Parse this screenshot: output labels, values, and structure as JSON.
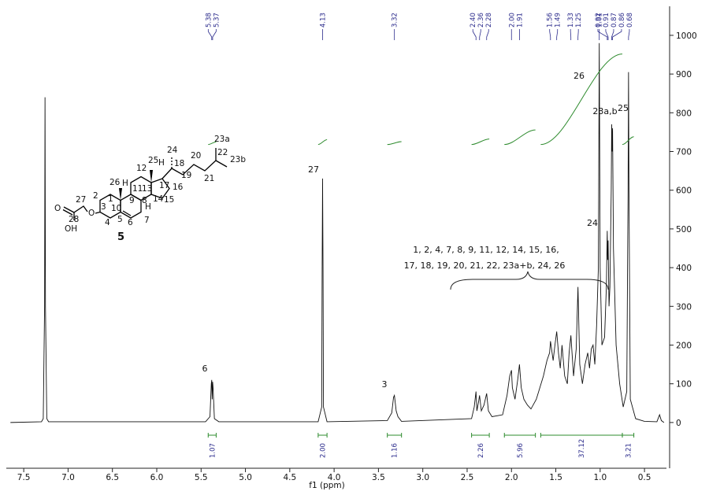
{
  "chart_data": {
    "type": "line",
    "xlabel": "f1 (ppm)",
    "xlim": [
      7.67,
      0.27
    ],
    "ylim": [
      -110,
      1075
    ],
    "xticks": [
      7.5,
      {
        "value": 7,
        "label": "7.0"
      },
      6.5,
      {
        "value": 6,
        "label": "6.0"
      },
      5.5,
      {
        "value": 5,
        "label": "5.0"
      },
      4.5,
      {
        "value": 4,
        "label": "4.0"
      },
      3.5,
      {
        "value": 3,
        "label": "3.0"
      },
      2.5,
      {
        "value": 2,
        "label": "2.0"
      },
      1.5,
      {
        "value": 1,
        "label": "1.0"
      },
      0.5
    ],
    "yticks": [
      0,
      100,
      200,
      300,
      400,
      500,
      600,
      700,
      800,
      900,
      1000
    ],
    "color": "#111111",
    "x": [
      7.65,
      7.3,
      7.28,
      7.265,
      7.26,
      7.255,
      7.24,
      7.22,
      5.45,
      5.4,
      5.385,
      5.38,
      5.375,
      5.37,
      5.365,
      5.35,
      5.3,
      4.18,
      4.14,
      4.135,
      4.13,
      4.125,
      4.12,
      4.08,
      3.4,
      3.35,
      3.34,
      3.33,
      3.32,
      3.31,
      3.3,
      3.28,
      3.24,
      2.45,
      2.42,
      2.4,
      2.39,
      2.37,
      2.36,
      2.34,
      2.31,
      2.29,
      2.28,
      2.26,
      2.22,
      2.1,
      2.05,
      2.02,
      2.0,
      1.99,
      1.96,
      1.93,
      1.91,
      1.89,
      1.86,
      1.82,
      1.78,
      1.72,
      1.68,
      1.64,
      1.6,
      1.57,
      1.56,
      1.53,
      1.51,
      1.49,
      1.47,
      1.45,
      1.43,
      1.4,
      1.37,
      1.35,
      1.33,
      1.3,
      1.27,
      1.25,
      1.23,
      1.2,
      1.17,
      1.14,
      1.12,
      1.1,
      1.08,
      1.06,
      1.04,
      1.02,
      1.01,
      1.0,
      0.98,
      0.95,
      0.93,
      0.92,
      0.915,
      0.91,
      0.9,
      0.89,
      0.875,
      0.87,
      0.865,
      0.86,
      0.85,
      0.82,
      0.78,
      0.74,
      0.7,
      0.685,
      0.68,
      0.675,
      0.66,
      0.6,
      0.5,
      0.36,
      0.33,
      0.31,
      0.28
    ],
    "values": [
      0,
      2,
      10,
      300,
      840,
      300,
      10,
      2,
      2,
      15,
      100,
      110,
      60,
      105,
      90,
      10,
      2,
      2,
      40,
      400,
      630,
      400,
      40,
      2,
      5,
      25,
      45,
      65,
      70,
      50,
      30,
      15,
      3,
      10,
      40,
      80,
      30,
      55,
      70,
      30,
      45,
      65,
      75,
      30,
      15,
      20,
      70,
      120,
      135,
      90,
      60,
      110,
      150,
      90,
      60,
      45,
      35,
      60,
      90,
      120,
      160,
      180,
      210,
      160,
      200,
      235,
      180,
      140,
      200,
      120,
      100,
      180,
      225,
      120,
      190,
      350,
      150,
      100,
      150,
      180,
      140,
      190,
      200,
      150,
      250,
      400,
      980,
      400,
      200,
      220,
      350,
      495,
      420,
      470,
      300,
      350,
      600,
      770,
      700,
      760,
      450,
      200,
      100,
      40,
      80,
      600,
      905,
      600,
      60,
      10,
      3,
      2,
      20,
      5,
      0
    ],
    "shifts": {
      "color": "#2b2b8c",
      "values": [
        5.38,
        5.37,
        4.13,
        3.32,
        2.4,
        2.36,
        2.28,
        2.0,
        1.91,
        1.56,
        1.49,
        1.33,
        1.25,
        1.01,
        0.92,
        0.91,
        0.87,
        0.86,
        0.68
      ],
      "value_labels": [
        "5.38",
        "5.37",
        "4.13",
        "3.32",
        "2.40",
        "2.36",
        "2.28",
        "2.00",
        "1.91",
        "1.56",
        "1.49",
        "1.33",
        "1.25",
        "1.01",
        "0.92",
        "0.91",
        "0.87",
        "0.86",
        "0.68"
      ]
    },
    "integrals": {
      "color": "#2e8b2e",
      "ranges": [
        [
          5.42,
          5.33
        ],
        [
          4.18,
          4.08
        ],
        [
          3.4,
          3.24
        ],
        [
          2.45,
          2.25
        ],
        [
          2.08,
          1.73
        ],
        [
          1.67,
          0.75
        ],
        [
          0.75,
          0.62
        ]
      ],
      "values": [
        1.07,
        2,
        1.16,
        2.26,
        5.96,
        37.12,
        3.21
      ],
      "value_labels": [
        "1.07",
        "2.00",
        "1.16",
        "2.26",
        "5.96",
        "37.12",
        "3.21"
      ]
    },
    "annotations": [
      "6",
      "27",
      "3",
      "24",
      "26",
      "23a,b",
      "25"
    ],
    "brace_text": [
      "1, 2, 4, 7, 8, 9, 11, 12, 14, 15, 16,",
      "17, 18, 19, 20, 21, 22, 23a+b, 24, 26"
    ]
  },
  "structure": {
    "labels": [
      "23a",
      "24",
      "22",
      "23b",
      "25",
      "H",
      "18",
      "20",
      "12",
      "17",
      "19",
      "21",
      "26",
      "H",
      "11",
      "13",
      "16",
      "9",
      "2",
      "1",
      "14",
      "8",
      "10",
      "15",
      "H",
      "3",
      "O",
      "27",
      "5",
      "7",
      "4",
      "6",
      "O",
      "28",
      "OH"
    ],
    "compound": "5"
  }
}
